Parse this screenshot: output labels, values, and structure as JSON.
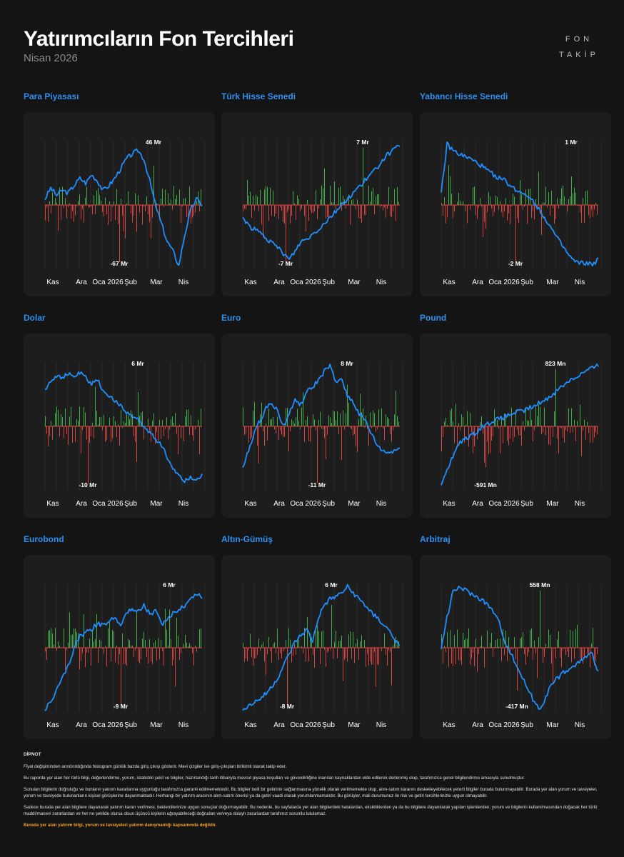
{
  "header": {
    "title": "Yatırımcıların Fon Tercihleri",
    "subtitle": "Nisan 2026",
    "logo_line1": "FON",
    "logo_line2": "TAKİP"
  },
  "colors": {
    "line": "#1e90ff",
    "inflow": "#3fae49",
    "outflow": "#d64541",
    "title": "#2d8ff0"
  },
  "x_ticks": [
    "Kas",
    "Ara",
    "Oca 2026",
    "Şub",
    "Mar",
    "Nis"
  ],
  "chart_data": [
    {
      "type": "bar+line",
      "title": "Para Piyasası",
      "max_label": "46 Mr",
      "min_label": "-67 Mr",
      "max_value": 46,
      "min_value": -67,
      "unit": "Mr",
      "line_shape": "rise-peak-crash-recover",
      "line_points": [
        0.55,
        0.64,
        0.58,
        0.62,
        0.6,
        0.66,
        0.72,
        0.68,
        0.75,
        0.7,
        0.62,
        0.66,
        0.72,
        0.8,
        0.88,
        0.92,
        0.95,
        0.88,
        0.7,
        0.5,
        0.35,
        0.2,
        0.12,
        0.0,
        0.25,
        0.45,
        0.55,
        0.5
      ]
    },
    {
      "type": "bar+line",
      "title": "Türk Hisse Senedi",
      "max_label": "7 Mr",
      "min_label": "-7 Mr",
      "max_value": 7,
      "min_value": -7,
      "unit": "Mr",
      "line_shape": "dip-then-rise",
      "line_points": [
        0.4,
        0.33,
        0.3,
        0.27,
        0.23,
        0.18,
        0.15,
        0.1,
        0.05,
        0.12,
        0.2,
        0.22,
        0.26,
        0.3,
        0.35,
        0.4,
        0.45,
        0.5,
        0.55,
        0.6,
        0.65,
        0.7,
        0.75,
        0.8,
        0.87,
        0.92,
        0.95,
        1.0
      ]
    },
    {
      "type": "bar+line",
      "title": "Yabancı Hisse Senedi",
      "max_label": "1 Mr",
      "min_label": "-2 Mr",
      "max_value": 1,
      "min_value": -2,
      "unit": "Mr",
      "line_shape": "spike-then-decline",
      "line_points": [
        0.6,
        1.0,
        0.95,
        0.92,
        0.9,
        0.88,
        0.85,
        0.82,
        0.78,
        0.75,
        0.72,
        0.7,
        0.65,
        0.62,
        0.6,
        0.58,
        0.52,
        0.45,
        0.38,
        0.3,
        0.22,
        0.15,
        0.08,
        0.03,
        0.02,
        0.02,
        0.01,
        0.05
      ]
    },
    {
      "type": "bar+line",
      "title": "Dolar",
      "max_label": "6 Mr",
      "min_label": "-10 Mr",
      "max_value": 6,
      "min_value": -10,
      "unit": "Mr",
      "line_shape": "plateau-then-decline",
      "line_points": [
        0.8,
        0.88,
        0.92,
        0.9,
        0.93,
        0.91,
        0.94,
        0.9,
        0.85,
        0.88,
        0.8,
        0.75,
        0.7,
        0.68,
        0.62,
        0.58,
        0.55,
        0.5,
        0.45,
        0.4,
        0.35,
        0.25,
        0.15,
        0.1,
        0.05,
        0.08,
        0.06,
        0.1
      ]
    },
    {
      "type": "bar+line",
      "title": "Euro",
      "max_label": "8 Mr",
      "min_label": "-11 Mr",
      "max_value": 8,
      "min_value": -11,
      "unit": "Mr",
      "line_shape": "rise-peak-decline",
      "line_points": [
        0.15,
        0.3,
        0.45,
        0.55,
        0.65,
        0.7,
        0.62,
        0.5,
        0.6,
        0.72,
        0.68,
        0.78,
        0.82,
        0.88,
        0.95,
        1.0,
        0.85,
        0.9,
        0.75,
        0.7,
        0.6,
        0.55,
        0.45,
        0.35,
        0.3,
        0.28,
        0.3,
        0.32
      ]
    },
    {
      "type": "bar+line",
      "title": "Pound",
      "max_label": "823 Mn",
      "min_label": "-591 Mn",
      "max_value": 823,
      "min_value": -591,
      "unit": "Mn",
      "line_shape": "steady-rise",
      "line_points": [
        0.0,
        0.15,
        0.25,
        0.35,
        0.4,
        0.42,
        0.45,
        0.5,
        0.52,
        0.55,
        0.56,
        0.58,
        0.6,
        0.62,
        0.62,
        0.65,
        0.66,
        0.7,
        0.72,
        0.76,
        0.8,
        0.84,
        0.88,
        0.9,
        0.93,
        0.96,
        0.98,
        1.0
      ]
    },
    {
      "type": "bar+line",
      "title": "Eurobond",
      "max_label": "6 Mr",
      "min_label": "-9 Mr",
      "max_value": 6,
      "min_value": -9,
      "unit": "Mr",
      "line_shape": "steady-rise-volatile",
      "line_points": [
        0.0,
        0.05,
        0.15,
        0.25,
        0.35,
        0.5,
        0.6,
        0.62,
        0.65,
        0.7,
        0.68,
        0.72,
        0.75,
        0.7,
        0.78,
        0.82,
        0.8,
        0.85,
        0.78,
        0.8,
        0.7,
        0.72,
        0.78,
        0.82,
        0.85,
        0.9,
        0.95,
        0.92
      ]
    },
    {
      "type": "bar+line",
      "title": "Altın-Gümüş",
      "max_label": "6 Mr",
      "min_label": "-8 Mr",
      "max_value": 6,
      "min_value": -8,
      "unit": "Mr",
      "line_shape": "flat-jump-peak-decline",
      "line_points": [
        0.0,
        0.02,
        0.05,
        0.08,
        0.12,
        0.18,
        0.25,
        0.35,
        0.45,
        0.55,
        0.6,
        0.65,
        0.55,
        0.75,
        0.85,
        0.9,
        0.92,
        0.95,
        1.0,
        0.95,
        0.9,
        0.85,
        0.8,
        0.75,
        0.7,
        0.65,
        0.58,
        0.5
      ]
    },
    {
      "type": "bar+line",
      "title": "Arbitraj",
      "max_label": "558 Mn",
      "min_label": "-417 Mn",
      "max_value": 558,
      "min_value": -417,
      "unit": "Mn",
      "line_shape": "spike-decline-recover",
      "line_points": [
        0.5,
        0.75,
        0.95,
        1.0,
        0.98,
        0.95,
        0.92,
        0.9,
        0.85,
        0.8,
        0.7,
        0.55,
        0.45,
        0.35,
        0.25,
        0.15,
        0.05,
        0.0,
        0.1,
        0.2,
        0.25,
        0.3,
        0.32,
        0.35,
        0.4,
        0.42,
        0.45,
        0.3
      ]
    }
  ],
  "footnote": {
    "heading": "DİPNOT",
    "p1": "Fiyat değişiminden arındırıldığında histogram günlük bazda giriş çıkışı gösterir. Mavi çizgiler ise giriş-çıkışları birikimli olarak takip eder.",
    "p2": "Bu raporda yer alan her türlü bilgi, değerlendirme, yorum, istatistiki şekil ve bilgiler, hazırlandığı tarih itibariyla mevcut piyasa koşulları ve güvenilirliğine inanılan kaynaklardan elde edilerek derlenmiş olup, tarafımızca genel bilgilendirme amacıyla sunulmuştur.",
    "p3": "Sunulan bilgilerin doğruluğu ve bunların yatırım kararlarına uygunluğu tarafımızca garanti edilmemektedir. Bu bilgiler belli bir getirinin sağlanmasına yönelik olarak verilmemekte olup, alım-satım kararını destekleyebilecek yeterli bilgiler burada bulunmayabilir. Burada yer alan yorum ve tavsiyeler, yorum ve tavsiyede bulunanların kişisel görüşlerine dayanmaktadır. Herhangi bir yatırım aracının alım-satım önerisi ya da getiri vaadi olarak yorumlanmamalıdır. Bu görüşler, mali durumunuz ile risk ve getiri tercihlerinizle uygun olmayabilir.",
    "p4": "Sadece burada yer alan bilgilere dayanarak yatırım kararı verilmesi, beklentilerinize uygun sonuçlar doğurmayabilir. Bu nedenle, bu sayfalarda yer alan bilgilerdeki hatalardan, eksikliklerden ya da bu bilgilere dayanılarak yapılan işlemlerden; yorum ve bilgilerin kullanılmasından doğacak her türlü maddi/manevi zararlardan ve her ne şekilde olursa olsun üçüncü kişilerin uğrayabileceği doğrudan ve/veya dolaylı zararlardan tarafımız sorumlu tutulamaz.",
    "p5": "Burada yer alan yatırım bilgi, yorum ve tavsiyeleri yatırım danışmanlığı kapsamında değildir."
  }
}
